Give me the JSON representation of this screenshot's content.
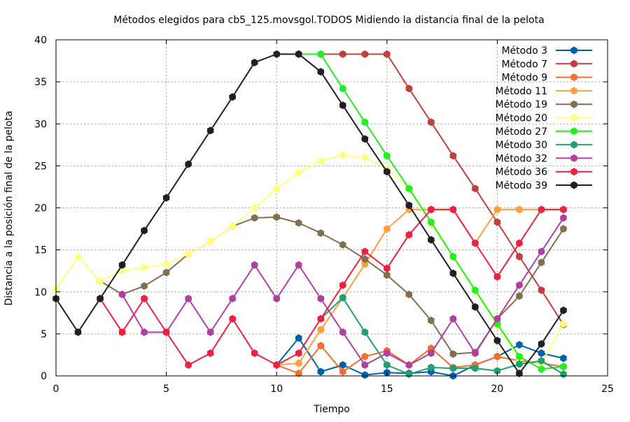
{
  "chart_data": {
    "type": "line",
    "title": "Métodos elegidos para cb5_125.movsgol.TODOS Midiendo la distancia final de la pelota",
    "xlabel": "Tiempo",
    "ylabel": "Distancia a la posición final de la pelota",
    "xlim": [
      0,
      25
    ],
    "ylim": [
      0,
      40
    ],
    "xticks": [
      0,
      5,
      10,
      15,
      20,
      25
    ],
    "yticks": [
      0,
      5,
      10,
      15,
      20,
      25,
      30,
      35,
      40
    ],
    "grid": true,
    "legend_position": "top-right",
    "series": [
      {
        "name": "Método 3",
        "color": "#0060ad",
        "points": [
          [
            10,
            1.3
          ],
          [
            11,
            4.5
          ],
          [
            12,
            0.5
          ],
          [
            13,
            1.3
          ],
          [
            14,
            0.1
          ],
          [
            15,
            0.4
          ],
          [
            16,
            0.3
          ],
          [
            17,
            0.5
          ],
          [
            18,
            0.0
          ],
          [
            19,
            1.3
          ],
          [
            20,
            2.3
          ],
          [
            21,
            3.7
          ],
          [
            22,
            2.7
          ],
          [
            23,
            2.1
          ]
        ]
      },
      {
        "name": "Método 7",
        "color": "#c04040",
        "points": [
          [
            11,
            38.3
          ],
          [
            12,
            38.3
          ],
          [
            13,
            38.3
          ],
          [
            14,
            38.3
          ],
          [
            15,
            38.3
          ],
          [
            16,
            34.2
          ],
          [
            17,
            30.2
          ],
          [
            18,
            26.2
          ],
          [
            19,
            22.3
          ],
          [
            20,
            18.3
          ],
          [
            21,
            14.2
          ],
          [
            22,
            10.2
          ],
          [
            23,
            6.1
          ]
        ]
      },
      {
        "name": "Método 9",
        "color": "#f07030",
        "points": [
          [
            10,
            1.3
          ],
          [
            11,
            0.3
          ],
          [
            12,
            3.6
          ],
          [
            13,
            0.5
          ],
          [
            14,
            2.3
          ],
          [
            15,
            3.0
          ],
          [
            16,
            1.3
          ],
          [
            17,
            3.3
          ],
          [
            18,
            1.0
          ],
          [
            19,
            1.3
          ],
          [
            20,
            2.3
          ],
          [
            21,
            1.8
          ],
          [
            22,
            1.5
          ],
          [
            23,
            1.1
          ]
        ]
      },
      {
        "name": "Método 11",
        "color": "#ffa040",
        "points": [
          [
            10,
            1.3
          ],
          [
            11,
            1.5
          ],
          [
            12,
            5.5
          ],
          [
            13,
            9.3
          ],
          [
            14,
            13.3
          ],
          [
            15,
            17.5
          ],
          [
            16,
            19.8
          ],
          [
            17,
            19.8
          ],
          [
            18,
            19.8
          ],
          [
            19,
            15.8
          ],
          [
            20,
            19.8
          ],
          [
            21,
            19.8
          ],
          [
            22,
            19.8
          ],
          [
            23,
            19.8
          ]
        ]
      },
      {
        "name": "Método 19",
        "color": "#807050",
        "points": [
          [
            2,
            11.3
          ],
          [
            3,
            9.7
          ],
          [
            4,
            10.7
          ],
          [
            5,
            12.3
          ],
          [
            6,
            14.5
          ],
          [
            7,
            16.0
          ],
          [
            8,
            17.8
          ],
          [
            9,
            18.8
          ],
          [
            10,
            18.9
          ],
          [
            11,
            18.2
          ],
          [
            12,
            17.0
          ],
          [
            13,
            15.6
          ],
          [
            14,
            13.9
          ],
          [
            15,
            12.0
          ],
          [
            16,
            9.7
          ],
          [
            17,
            6.6
          ],
          [
            18,
            2.6
          ],
          [
            19,
            2.8
          ],
          [
            20,
            6.8
          ],
          [
            21,
            9.5
          ],
          [
            22,
            13.5
          ],
          [
            23,
            17.5
          ]
        ]
      },
      {
        "name": "Método 20",
        "color": "#ffff80",
        "points": [
          [
            0,
            10.3
          ],
          [
            1,
            14.2
          ],
          [
            2,
            11.3
          ],
          [
            3,
            12.5
          ],
          [
            4,
            12.9
          ],
          [
            5,
            13.3
          ],
          [
            6,
            14.5
          ],
          [
            7,
            16.0
          ],
          [
            8,
            17.8
          ],
          [
            9,
            20.0
          ],
          [
            10,
            22.3
          ],
          [
            11,
            24.2
          ],
          [
            12,
            25.6
          ],
          [
            13,
            26.3
          ],
          [
            14,
            26.0
          ],
          [
            15,
            24.7
          ],
          [
            16,
            22.2
          ],
          [
            17,
            18.1
          ],
          [
            18,
            14.1
          ],
          [
            19,
            10.1
          ],
          [
            20,
            6.0
          ],
          [
            21,
            2.0
          ],
          [
            22,
            1.5
          ],
          [
            23,
            6.2
          ]
        ]
      },
      {
        "name": "Método 27",
        "color": "#20f020",
        "points": [
          [
            11,
            38.3
          ],
          [
            12,
            38.3
          ],
          [
            13,
            34.2
          ],
          [
            14,
            30.2
          ],
          [
            15,
            26.2
          ],
          [
            16,
            22.3
          ],
          [
            17,
            18.3
          ],
          [
            18,
            14.2
          ],
          [
            19,
            10.2
          ],
          [
            20,
            6.2
          ],
          [
            21,
            2.3
          ],
          [
            22,
            0.8
          ],
          [
            23,
            1.1
          ]
        ]
      },
      {
        "name": "Método 30",
        "color": "#20a070",
        "points": [
          [
            12,
            6.8
          ],
          [
            13,
            9.3
          ],
          [
            14,
            5.2
          ],
          [
            15,
            1.3
          ],
          [
            16,
            0.2
          ],
          [
            17,
            1.0
          ],
          [
            18,
            0.9
          ],
          [
            19,
            0.9
          ],
          [
            20,
            0.6
          ],
          [
            21,
            1.4
          ],
          [
            22,
            1.8
          ],
          [
            23,
            0.2
          ]
        ]
      },
      {
        "name": "Método 32",
        "color": "#b040a0",
        "points": [
          [
            3,
            9.7
          ],
          [
            4,
            5.2
          ],
          [
            5,
            5.2
          ],
          [
            6,
            9.2
          ],
          [
            7,
            5.2
          ],
          [
            8,
            9.2
          ],
          [
            9,
            13.2
          ],
          [
            10,
            9.2
          ],
          [
            11,
            13.2
          ],
          [
            12,
            9.2
          ],
          [
            13,
            5.2
          ],
          [
            14,
            1.3
          ],
          [
            15,
            2.7
          ],
          [
            16,
            1.3
          ],
          [
            17,
            2.7
          ],
          [
            18,
            6.8
          ],
          [
            19,
            2.7
          ],
          [
            20,
            6.8
          ],
          [
            21,
            10.8
          ],
          [
            22,
            14.8
          ],
          [
            23,
            18.8
          ]
        ]
      },
      {
        "name": "Método 36",
        "color": "#f02040",
        "points": [
          [
            2,
            9.2
          ],
          [
            3,
            5.2
          ],
          [
            4,
            9.2
          ],
          [
            5,
            5.2
          ],
          [
            6,
            1.3
          ],
          [
            7,
            2.7
          ],
          [
            8,
            6.8
          ],
          [
            9,
            2.7
          ],
          [
            10,
            1.3
          ],
          [
            11,
            2.7
          ],
          [
            12,
            6.8
          ],
          [
            13,
            10.8
          ],
          [
            14,
            14.8
          ],
          [
            15,
            12.8
          ],
          [
            16,
            16.8
          ],
          [
            17,
            19.8
          ],
          [
            18,
            19.8
          ],
          [
            19,
            15.8
          ],
          [
            20,
            11.8
          ],
          [
            21,
            15.8
          ],
          [
            22,
            19.8
          ],
          [
            23,
            19.8
          ]
        ]
      },
      {
        "name": "Método 39",
        "color": "#202020",
        "points": [
          [
            0,
            9.2
          ],
          [
            1,
            5.2
          ],
          [
            2,
            9.2
          ],
          [
            3,
            13.2
          ],
          [
            4,
            17.3
          ],
          [
            5,
            21.2
          ],
          [
            6,
            25.2
          ],
          [
            7,
            29.2
          ],
          [
            8,
            33.2
          ],
          [
            9,
            37.3
          ],
          [
            10,
            38.3
          ],
          [
            11,
            38.3
          ],
          [
            12,
            36.2
          ],
          [
            13,
            32.2
          ],
          [
            14,
            28.2
          ],
          [
            15,
            24.3
          ],
          [
            16,
            20.3
          ],
          [
            17,
            16.2
          ],
          [
            18,
            12.2
          ],
          [
            19,
            8.2
          ],
          [
            20,
            4.2
          ],
          [
            21,
            0.3
          ],
          [
            22,
            3.8
          ],
          [
            23,
            7.8
          ]
        ]
      }
    ]
  }
}
